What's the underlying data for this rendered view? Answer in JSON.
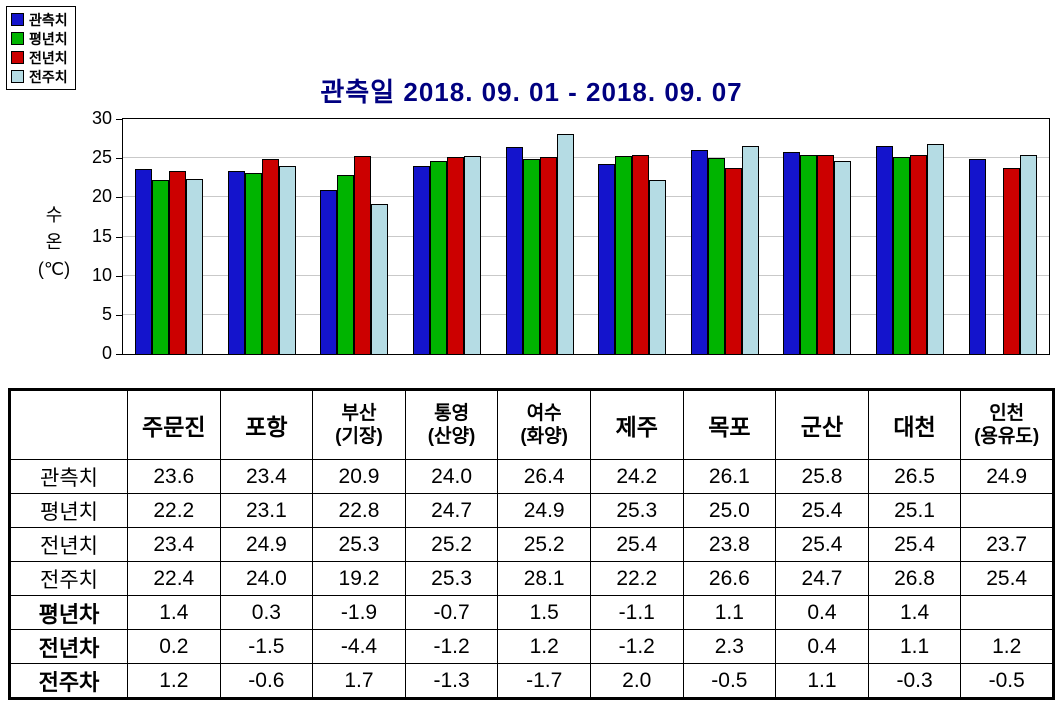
{
  "title": "관측일 2018. 09. 01 - 2018. 09. 07",
  "legend": [
    {
      "label": "관측치",
      "color": "#1414CC"
    },
    {
      "label": "평년치",
      "color": "#00B400"
    },
    {
      "label": "전년치",
      "color": "#CC0000"
    },
    {
      "label": "전주치",
      "color": "#B5DCE4"
    }
  ],
  "chart_data": {
    "type": "bar",
    "title": "관측일 2018. 09. 01 - 2018. 09. 07",
    "ylabel": "수온 (℃)",
    "ylabel_lines": "수\n온\n(℃)",
    "ylim": [
      0,
      30
    ],
    "yticks": [
      0,
      5,
      10,
      15,
      20,
      25,
      30
    ],
    "grid": true,
    "legend_position": "top-left",
    "categories": [
      "주문진",
      "포항",
      "부산(기장)",
      "통영(산양)",
      "여수(화양)",
      "제주",
      "목포",
      "군산",
      "대천",
      "인천(용유도)"
    ],
    "series": [
      {
        "name": "관측치",
        "color": "#1414CC",
        "values": [
          23.6,
          23.4,
          20.9,
          24.0,
          26.4,
          24.2,
          26.1,
          25.8,
          26.5,
          24.9
        ]
      },
      {
        "name": "평년치",
        "color": "#00B400",
        "values": [
          22.2,
          23.1,
          22.8,
          24.7,
          24.9,
          25.3,
          25.0,
          25.4,
          25.1,
          null
        ]
      },
      {
        "name": "전년치",
        "color": "#CC0000",
        "values": [
          23.4,
          24.9,
          25.3,
          25.2,
          25.2,
          25.4,
          23.8,
          25.4,
          25.4,
          23.7
        ]
      },
      {
        "name": "전주치",
        "color": "#B5DCE4",
        "values": [
          22.4,
          24.0,
          19.2,
          25.3,
          28.1,
          22.2,
          26.6,
          24.7,
          26.8,
          25.4
        ]
      }
    ]
  },
  "table": {
    "col_headers": [
      "",
      "주문진",
      "포항",
      "부산\n(기장)",
      "통영\n(산양)",
      "여수\n(화양)",
      "제주",
      "목포",
      "군산",
      "대천",
      "인천\n(용유도)"
    ],
    "rows": [
      {
        "label": "관측치",
        "bold": false,
        "values": [
          "23.6",
          "23.4",
          "20.9",
          "24.0",
          "26.4",
          "24.2",
          "26.1",
          "25.8",
          "26.5",
          "24.9"
        ]
      },
      {
        "label": "평년치",
        "bold": false,
        "values": [
          "22.2",
          "23.1",
          "22.8",
          "24.7",
          "24.9",
          "25.3",
          "25.0",
          "25.4",
          "25.1",
          ""
        ]
      },
      {
        "label": "전년치",
        "bold": false,
        "values": [
          "23.4",
          "24.9",
          "25.3",
          "25.2",
          "25.2",
          "25.4",
          "23.8",
          "25.4",
          "25.4",
          "23.7"
        ]
      },
      {
        "label": "전주치",
        "bold": false,
        "values": [
          "22.4",
          "24.0",
          "19.2",
          "25.3",
          "28.1",
          "22.2",
          "26.6",
          "24.7",
          "26.8",
          "25.4"
        ]
      },
      {
        "label": "평년차",
        "bold": true,
        "values": [
          "1.4",
          "0.3",
          "-1.9",
          "-0.7",
          "1.5",
          "-1.1",
          "1.1",
          "0.4",
          "1.4",
          ""
        ]
      },
      {
        "label": "전년차",
        "bold": true,
        "values": [
          "0.2",
          "-1.5",
          "-4.4",
          "-1.2",
          "1.2",
          "-1.2",
          "2.3",
          "0.4",
          "1.1",
          "1.2"
        ]
      },
      {
        "label": "전주차",
        "bold": true,
        "values": [
          "1.2",
          "-0.6",
          "1.7",
          "-1.3",
          "-1.7",
          "2.0",
          "-0.5",
          "1.1",
          "-0.3",
          "-0.5"
        ]
      }
    ]
  }
}
